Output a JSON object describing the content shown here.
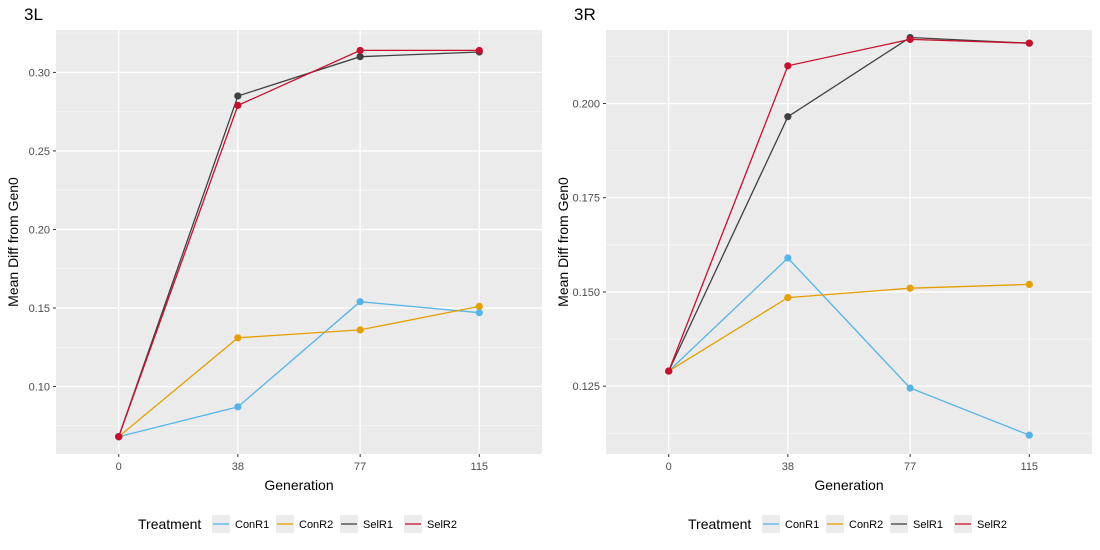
{
  "chart_data": [
    {
      "type": "line",
      "title": "3L",
      "xlabel": "Generation",
      "ylabel": "Mean Diff from Gen0",
      "x": [
        0,
        38,
        77,
        115
      ],
      "xticks": [
        "0",
        "38",
        "77",
        "115"
      ],
      "xlim": [
        -20,
        135
      ],
      "ylim": [
        0.057,
        0.327
      ],
      "yticks": [
        0.1,
        0.15,
        0.2,
        0.25,
        0.3
      ],
      "ytick_labels": [
        "0.10",
        "0.15",
        "0.20",
        "0.25",
        "0.30"
      ],
      "grid": true,
      "legend_title": "Treatment",
      "legend_position": "bottom",
      "series": [
        {
          "name": "ConR1",
          "color": "#56B4E9",
          "values": [
            0.068,
            0.087,
            0.154,
            0.147
          ]
        },
        {
          "name": "ConR2",
          "color": "#E69F00",
          "values": [
            0.068,
            0.131,
            0.136,
            0.151
          ]
        },
        {
          "name": "SelR1",
          "color": "#404040",
          "values": [
            0.068,
            0.285,
            0.31,
            0.313
          ]
        },
        {
          "name": "SelR2",
          "color": "#C8102E",
          "values": [
            0.068,
            0.279,
            0.314,
            0.314
          ]
        }
      ]
    },
    {
      "type": "line",
      "title": "3R",
      "xlabel": "Generation",
      "ylabel": "Mean Diff from Gen0",
      "x": [
        0,
        38,
        77,
        115
      ],
      "xticks": [
        "0",
        "38",
        "77",
        "115"
      ],
      "xlim": [
        -20,
        135
      ],
      "ylim": [
        0.107,
        0.2195
      ],
      "yticks": [
        0.125,
        0.15,
        0.175,
        0.2
      ],
      "ytick_labels": [
        "0.125",
        "0.150",
        "0.175",
        "0.200"
      ],
      "grid": true,
      "legend_title": "Treatment",
      "legend_position": "bottom",
      "series": [
        {
          "name": "ConR1",
          "color": "#56B4E9",
          "values": [
            0.129,
            0.159,
            0.1245,
            0.112
          ]
        },
        {
          "name": "ConR2",
          "color": "#E69F00",
          "values": [
            0.129,
            0.1485,
            0.151,
            0.152
          ]
        },
        {
          "name": "SelR1",
          "color": "#404040",
          "values": [
            0.129,
            0.1965,
            0.2175,
            0.216
          ]
        },
        {
          "name": "SelR2",
          "color": "#C8102E",
          "values": [
            0.129,
            0.21,
            0.217,
            0.216
          ]
        }
      ]
    }
  ]
}
